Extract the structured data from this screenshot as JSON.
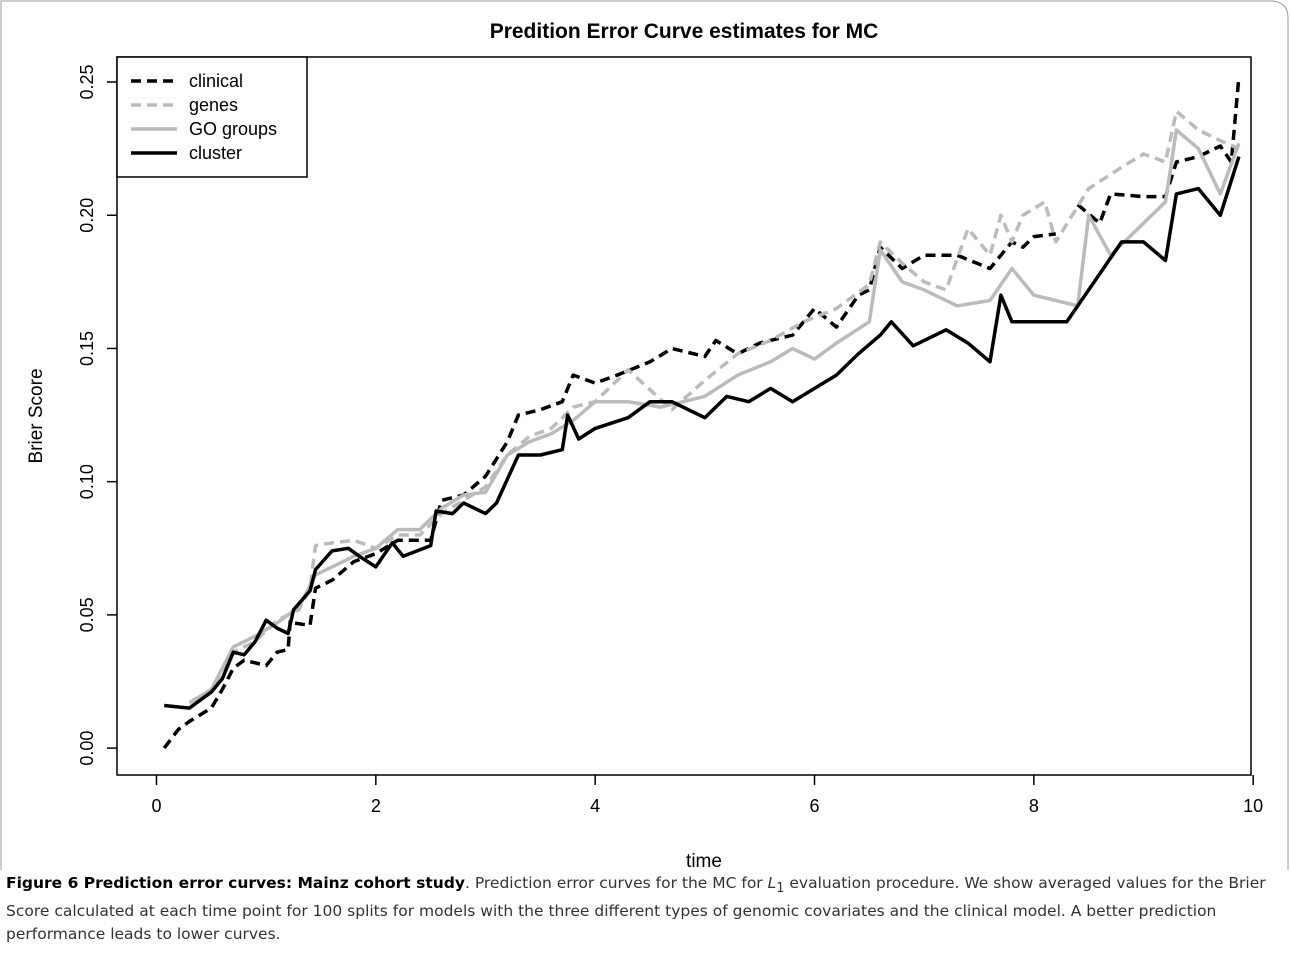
{
  "chart_data": {
    "type": "line",
    "title": "Predition Error Curve estimates for MC",
    "x_label": "time",
    "y_label": "Brier Score",
    "xlim": [
      -0.36,
      9.98
    ],
    "ylim": [
      -0.0101,
      0.2594
    ],
    "xticks": [
      0,
      2,
      4,
      6,
      8,
      10
    ],
    "yticks": [
      {
        "value": 0,
        "label": "0.00"
      },
      {
        "value": 0.05,
        "label": "0.05"
      },
      {
        "value": 0.1,
        "label": "0.10"
      },
      {
        "value": 0.15,
        "label": "0.15"
      },
      {
        "value": 0.2,
        "label": "0.20"
      },
      {
        "value": 0.25,
        "label": "0.25"
      }
    ],
    "legend": "top-left",
    "series": [
      {
        "name": "clinical",
        "color": "#000000",
        "line_style": "dashed",
        "x": [
          0.07,
          0.2,
          0.3,
          0.5,
          0.6,
          0.7,
          0.8,
          1.0,
          1.1,
          1.2,
          1.22,
          1.25,
          1.4,
          1.45,
          1.6,
          1.8,
          2.0,
          2.2,
          2.5,
          2.6,
          2.8,
          3.0,
          3.2,
          3.3,
          3.5,
          3.7,
          3.8,
          4.0,
          4.2,
          4.5,
          4.7,
          5.0,
          5.1,
          5.3,
          5.5,
          5.8,
          6.0,
          6.2,
          6.4,
          6.5,
          6.6,
          6.8,
          7.0,
          7.3,
          7.6,
          7.8,
          7.9,
          8.0,
          8.2,
          8.3,
          8.4,
          8.6,
          8.7,
          9.0,
          9.2,
          9.3,
          9.5,
          9.7,
          9.8,
          9.87
        ],
        "values": [
          0.0,
          0.007,
          0.01,
          0.015,
          0.022,
          0.03,
          0.033,
          0.031,
          0.036,
          0.037,
          0.048,
          0.047,
          0.046,
          0.06,
          0.063,
          0.07,
          0.073,
          0.078,
          0.078,
          0.093,
          0.095,
          0.102,
          0.115,
          0.125,
          0.127,
          0.13,
          0.14,
          0.137,
          0.14,
          0.145,
          0.15,
          0.147,
          0.153,
          0.148,
          0.152,
          0.155,
          0.165,
          0.158,
          0.17,
          0.172,
          0.188,
          0.18,
          0.185,
          0.185,
          0.18,
          0.19,
          0.188,
          0.192,
          0.193,
          null,
          0.204,
          0.197,
          0.208,
          0.207,
          0.207,
          0.22,
          0.222,
          0.226,
          0.22,
          0.252
        ]
      },
      {
        "name": "genes",
        "color": "#bbbbbb",
        "line_style": "dashed",
        "x": [
          0.3,
          0.5,
          0.7,
          0.9,
          1.1,
          1.3,
          1.4,
          1.45,
          1.6,
          1.8,
          2.0,
          2.2,
          2.4,
          2.6,
          2.8,
          3.0,
          3.2,
          3.4,
          3.6,
          3.8,
          4.0,
          4.3,
          4.7,
          5.0,
          5.3,
          5.6,
          5.9,
          6.2,
          6.5,
          6.6,
          6.8,
          7.0,
          7.2,
          7.4,
          7.6,
          7.7,
          7.8,
          7.9,
          8.1,
          8.2,
          8.5,
          8.8,
          9.0,
          9.2,
          9.3,
          9.5,
          9.7,
          9.87
        ],
        "values": [
          0.017,
          0.022,
          0.036,
          0.04,
          0.048,
          0.052,
          0.06,
          0.076,
          0.077,
          0.078,
          0.075,
          0.08,
          0.08,
          0.088,
          0.093,
          0.098,
          0.11,
          0.117,
          0.12,
          0.128,
          0.13,
          0.142,
          0.127,
          0.138,
          0.148,
          0.153,
          0.16,
          0.165,
          0.174,
          0.19,
          0.182,
          0.175,
          0.172,
          0.195,
          0.185,
          0.2,
          0.19,
          0.2,
          0.205,
          0.19,
          0.21,
          0.218,
          0.223,
          0.22,
          0.239,
          0.232,
          0.228,
          0.225
        ]
      },
      {
        "name": "GO groups",
        "color": "#bbbbbb",
        "line_style": "solid",
        "x": [
          0.3,
          0.5,
          0.7,
          0.9,
          1.1,
          1.3,
          1.45,
          1.6,
          1.8,
          2.0,
          2.2,
          2.4,
          2.6,
          2.8,
          3.0,
          3.2,
          3.4,
          3.6,
          3.8,
          4.0,
          4.3,
          4.6,
          5.0,
          5.3,
          5.6,
          5.8,
          6.0,
          6.2,
          6.5,
          6.6,
          6.8,
          7.0,
          7.3,
          7.6,
          7.8,
          8.0,
          8.2,
          8.4,
          8.5,
          8.7,
          9.2,
          9.3,
          9.5,
          9.7,
          9.87
        ],
        "values": [
          0.017,
          0.022,
          0.038,
          0.042,
          0.047,
          0.053,
          0.065,
          0.068,
          0.072,
          0.075,
          0.082,
          0.082,
          0.09,
          0.095,
          0.096,
          0.11,
          0.115,
          0.118,
          0.123,
          0.13,
          0.13,
          0.128,
          0.132,
          0.14,
          0.145,
          0.15,
          0.146,
          0.152,
          0.16,
          0.187,
          0.175,
          0.172,
          0.166,
          0.168,
          0.18,
          0.17,
          0.168,
          0.166,
          0.2,
          0.185,
          0.205,
          0.232,
          0.225,
          0.208,
          0.227
        ]
      },
      {
        "name": "cluster",
        "color": "#000000",
        "line_style": "solid",
        "x": [
          0.07,
          0.3,
          0.5,
          0.6,
          0.7,
          0.8,
          0.9,
          1.0,
          1.1,
          1.2,
          1.25,
          1.4,
          1.45,
          1.6,
          1.75,
          1.85,
          2.0,
          2.15,
          2.25,
          2.5,
          2.55,
          2.7,
          2.8,
          3.0,
          3.1,
          3.3,
          3.5,
          3.7,
          3.75,
          3.85,
          4.0,
          4.3,
          4.5,
          4.7,
          5.0,
          5.2,
          5.4,
          5.6,
          5.8,
          6.0,
          6.2,
          6.4,
          6.6,
          6.7,
          6.9,
          7.2,
          7.4,
          7.6,
          7.7,
          7.8,
          8.0,
          8.2,
          8.3,
          8.6,
          8.8,
          9.0,
          9.2,
          9.3,
          9.5,
          9.7,
          9.87
        ],
        "values": [
          0.016,
          0.015,
          0.021,
          0.026,
          0.036,
          0.035,
          0.04,
          0.048,
          0.045,
          0.043,
          0.052,
          0.059,
          0.067,
          0.074,
          0.075,
          0.072,
          0.068,
          0.077,
          0.072,
          0.076,
          0.089,
          0.088,
          0.092,
          0.088,
          0.092,
          0.11,
          0.11,
          0.112,
          0.125,
          0.116,
          0.12,
          0.124,
          0.13,
          0.13,
          0.124,
          0.132,
          0.13,
          0.135,
          0.13,
          0.135,
          0.14,
          0.148,
          0.155,
          0.16,
          0.151,
          0.157,
          0.152,
          0.145,
          0.17,
          0.16,
          0.16,
          0.16,
          0.16,
          0.178,
          0.19,
          0.19,
          0.183,
          0.208,
          0.21,
          0.2,
          0.222
        ]
      }
    ]
  },
  "caption": {
    "label": "Figure 6 Prediction error curves: Mainz cohort study",
    "text_before": ". Prediction error curves for the MC for ",
    "symbol": "L",
    "subscript": "1",
    "text_after": " evaluation procedure. We show averaged values for the Brier Score calculated at each time point for 100 splits for models with the three different types of genomic covariates and the clinical model. A better prediction performance leads to lower curves."
  }
}
